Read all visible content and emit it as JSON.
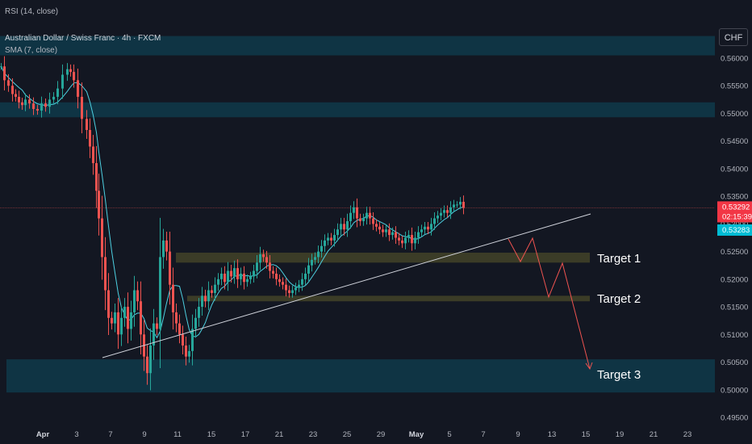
{
  "header": {
    "rsi_label": "RSI (14, close)",
    "pair_label": "Australian Dollar / Swiss Franc · 4h · FXCM",
    "sma_label": "SMA (7, close)",
    "currency": "CHF"
  },
  "colors": {
    "background": "#131722",
    "bull": "#26a69a",
    "bear": "#ef5350",
    "sma": "#4dd0e1",
    "zone_blue": "#0f3a4a",
    "zone_olive": "#4a4a2a",
    "trendline": "#d1d4dc",
    "projection": "#ef5350",
    "price_tag": "#f23645",
    "sma_tag": "#00bcd4"
  },
  "price_tags": {
    "last_price": "0.53292",
    "countdown": "02:15:39",
    "sma_value": "0.53283"
  },
  "annotations": {
    "target1": "Target 1",
    "target2": "Target 2",
    "target3": "Target 3"
  },
  "chart_data": {
    "type": "candlestick",
    "title": "Australian Dollar / Swiss Franc · 4h · FXCM",
    "indicators": [
      "RSI (14, close)",
      "SMA (7, close)"
    ],
    "y_ticks": [
      "0.56000",
      "0.55500",
      "0.55000",
      "0.54500",
      "0.54000",
      "0.53500",
      "0.53000",
      "0.52500",
      "0.52000",
      "0.51500",
      "0.51000",
      "0.50500",
      "0.50000",
      "0.49500"
    ],
    "x_ticks": [
      "Apr",
      "3",
      "7",
      "9",
      "11",
      "15",
      "17",
      "21",
      "23",
      "25",
      "29",
      "May",
      "5",
      "7",
      "9",
      "13",
      "15",
      "19",
      "21",
      "23"
    ],
    "ylim": [
      0.494,
      0.564
    ],
    "last_price": 0.53292,
    "sma_last": 0.53283,
    "price_path": [
      [
        0,
        0.5585
      ],
      [
        4,
        0.556
      ],
      [
        9,
        0.555
      ],
      [
        14,
        0.5535
      ],
      [
        18,
        0.553
      ],
      [
        22,
        0.552
      ],
      [
        26,
        0.5515
      ],
      [
        30,
        0.5525
      ],
      [
        35,
        0.5518
      ],
      [
        40,
        0.5508
      ],
      [
        45,
        0.5505
      ],
      [
        50,
        0.5518
      ],
      [
        55,
        0.5512
      ],
      [
        60,
        0.5525
      ],
      [
        65,
        0.553
      ],
      [
        70,
        0.5545
      ],
      [
        76,
        0.557
      ],
      [
        82,
        0.558
      ],
      [
        86,
        0.5575
      ],
      [
        90,
        0.556
      ],
      [
        95,
        0.553
      ],
      [
        100,
        0.549
      ],
      [
        106,
        0.547
      ],
      [
        110,
        0.544
      ],
      [
        114,
        0.541
      ],
      [
        118,
        0.536
      ],
      [
        121,
        0.531
      ],
      [
        125,
        0.524
      ],
      [
        129,
        0.518
      ],
      [
        133,
        0.513
      ],
      [
        137,
        0.512
      ],
      [
        141,
        0.514
      ],
      [
        145,
        0.51
      ],
      [
        149,
        0.513
      ],
      [
        153,
        0.515
      ],
      [
        157,
        0.511
      ],
      [
        161,
        0.514
      ],
      [
        165,
        0.518
      ],
      [
        169,
        0.516
      ],
      [
        173,
        0.51
      ],
      [
        177,
        0.506
      ],
      [
        181,
        0.503
      ],
      [
        185,
        0.508
      ],
      [
        189,
        0.512
      ],
      [
        193,
        0.511
      ],
      [
        197,
        0.524
      ],
      [
        201,
        0.527
      ],
      [
        205,
        0.525
      ],
      [
        209,
        0.519
      ],
      [
        213,
        0.514
      ],
      [
        217,
        0.512
      ],
      [
        221,
        0.51
      ],
      [
        225,
        0.508
      ],
      [
        229,
        0.506
      ],
      [
        233,
        0.507
      ],
      [
        237,
        0.511
      ],
      [
        241,
        0.513
      ],
      [
        245,
        0.515
      ],
      [
        249,
        0.517
      ],
      [
        253,
        0.516
      ],
      [
        257,
        0.518
      ],
      [
        261,
        0.5175
      ],
      [
        265,
        0.519
      ],
      [
        269,
        0.52
      ],
      [
        273,
        0.521
      ],
      [
        277,
        0.5195
      ],
      [
        281,
        0.5215
      ],
      [
        285,
        0.5205
      ],
      [
        289,
        0.522
      ],
      [
        293,
        0.52
      ],
      [
        297,
        0.521
      ],
      [
        301,
        0.5195
      ],
      [
        305,
        0.52
      ],
      [
        309,
        0.5205
      ],
      [
        313,
        0.5215
      ],
      [
        317,
        0.523
      ],
      [
        321,
        0.5245
      ],
      [
        325,
        0.524
      ],
      [
        329,
        0.523
      ],
      [
        333,
        0.5215
      ],
      [
        337,
        0.521
      ],
      [
        341,
        0.52
      ],
      [
        345,
        0.5195
      ],
      [
        349,
        0.519
      ],
      [
        353,
        0.518
      ],
      [
        357,
        0.5175
      ],
      [
        361,
        0.518
      ],
      [
        365,
        0.5185
      ],
      [
        369,
        0.519
      ],
      [
        373,
        0.52
      ],
      [
        377,
        0.521
      ],
      [
        381,
        0.5225
      ],
      [
        385,
        0.5235
      ],
      [
        389,
        0.524
      ],
      [
        393,
        0.525
      ],
      [
        397,
        0.526
      ],
      [
        401,
        0.527
      ],
      [
        405,
        0.5275
      ],
      [
        409,
        0.527
      ],
      [
        413,
        0.528
      ],
      [
        417,
        0.529
      ],
      [
        421,
        0.53
      ],
      [
        425,
        0.529
      ],
      [
        429,
        0.5305
      ],
      [
        433,
        0.532
      ],
      [
        437,
        0.533
      ],
      [
        441,
        0.531
      ],
      [
        445,
        0.5305
      ],
      [
        449,
        0.531
      ],
      [
        453,
        0.532
      ],
      [
        457,
        0.531
      ],
      [
        461,
        0.53
      ],
      [
        465,
        0.5295
      ],
      [
        469,
        0.529
      ],
      [
        473,
        0.5285
      ],
      [
        477,
        0.529
      ],
      [
        481,
        0.528
      ],
      [
        485,
        0.5285
      ],
      [
        489,
        0.5275
      ],
      [
        493,
        0.527
      ],
      [
        497,
        0.5265
      ],
      [
        501,
        0.5275
      ],
      [
        505,
        0.528
      ],
      [
        509,
        0.5265
      ],
      [
        513,
        0.5275
      ],
      [
        517,
        0.5285
      ],
      [
        521,
        0.529
      ],
      [
        525,
        0.5295
      ],
      [
        529,
        0.529
      ],
      [
        533,
        0.53
      ],
      [
        537,
        0.531
      ],
      [
        541,
        0.5315
      ],
      [
        545,
        0.532
      ],
      [
        549,
        0.5325
      ],
      [
        553,
        0.532
      ],
      [
        557,
        0.533
      ],
      [
        561,
        0.5335
      ],
      [
        565,
        0.5335
      ],
      [
        569,
        0.534
      ],
      [
        573,
        0.5329
      ]
    ],
    "zones": [
      {
        "name": "upper-resistance",
        "from": 0.5605,
        "to": 0.564
      },
      {
        "name": "mid-resistance",
        "from": 0.5493,
        "to": 0.552
      },
      {
        "name": "target1-zone",
        "from": 0.523,
        "to": 0.5248
      },
      {
        "name": "target2-zone",
        "from": 0.516,
        "to": 0.517
      },
      {
        "name": "support-zone",
        "from": 0.4995,
        "to": 0.5055
      }
    ]
  }
}
